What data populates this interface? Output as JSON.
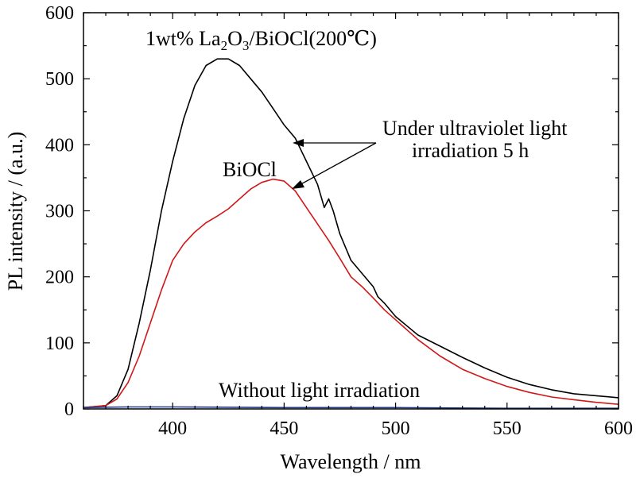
{
  "chart_data": {
    "type": "line",
    "xlabel": "Wavelength / nm",
    "ylabel": "PL intensity / (a.u.)",
    "xlim": [
      360,
      600
    ],
    "ylim": [
      0,
      600
    ],
    "xticks": [
      400,
      450,
      500,
      550,
      600
    ],
    "yticks": [
      0,
      100,
      200,
      300,
      400,
      500,
      600
    ],
    "grid": false,
    "legend": "none",
    "series": [
      {
        "name": "1wt% La2O3/BiOCl(200℃)",
        "color": "#000000",
        "x": [
          360,
          370,
          375,
          380,
          385,
          390,
          395,
          400,
          405,
          410,
          415,
          420,
          425,
          430,
          435,
          440,
          445,
          450,
          455,
          460,
          465,
          468,
          470,
          472,
          475,
          480,
          485,
          490,
          492,
          495,
          500,
          510,
          520,
          530,
          540,
          550,
          560,
          570,
          580,
          590,
          600
        ],
        "y": [
          2,
          5,
          20,
          60,
          130,
          210,
          300,
          375,
          440,
          490,
          520,
          530,
          530,
          520,
          500,
          480,
          455,
          430,
          410,
          375,
          340,
          305,
          318,
          300,
          265,
          225,
          205,
          185,
          170,
          160,
          140,
          112,
          95,
          78,
          62,
          48,
          37,
          29,
          23,
          20,
          17
        ]
      },
      {
        "name": "BiOCl",
        "color": "#d01818",
        "x": [
          360,
          370,
          375,
          380,
          385,
          390,
          395,
          400,
          405,
          410,
          415,
          420,
          425,
          430,
          435,
          440,
          445,
          450,
          455,
          460,
          465,
          470,
          475,
          480,
          485,
          490,
          495,
          500,
          510,
          520,
          530,
          540,
          550,
          560,
          570,
          580,
          590,
          600
        ],
        "y": [
          2,
          5,
          15,
          40,
          80,
          130,
          180,
          225,
          250,
          268,
          282,
          292,
          303,
          318,
          333,
          343,
          348,
          345,
          330,
          305,
          280,
          255,
          228,
          200,
          185,
          168,
          150,
          135,
          105,
          80,
          60,
          46,
          34,
          25,
          18,
          14,
          10,
          7
        ]
      },
      {
        "name": "Without light irradiation",
        "color": "#1f3a8a",
        "x": [
          360,
          380,
          400,
          450,
          500,
          550,
          600
        ],
        "y": [
          2,
          3,
          3,
          2,
          2,
          1,
          1
        ]
      }
    ],
    "annotations": {
      "top_label_pre": "1wt% La",
      "top_label_sub1": "2",
      "top_label_mid": "O",
      "top_label_sub2": "3",
      "top_label_post": "/BiOCl(200℃)",
      "biocl_label": "BiOCl",
      "uv_label_line1": "Under ultraviolet light",
      "uv_label_line2": "irradiation 5 h",
      "dark_label": "Without light irradiation"
    }
  }
}
